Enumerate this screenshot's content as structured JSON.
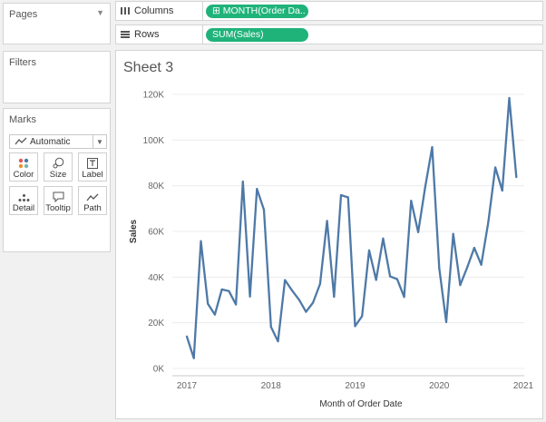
{
  "pages": {
    "title": "Pages"
  },
  "filters": {
    "title": "Filters"
  },
  "marks": {
    "title": "Marks",
    "mark_type": "Automatic",
    "buttons": [
      "Color",
      "Size",
      "Label",
      "Detail",
      "Tooltip",
      "Path"
    ]
  },
  "shelves": {
    "columns_label": "Columns",
    "columns_pill": "MONTH(Order Da..",
    "rows_label": "Rows",
    "rows_pill": "SUM(Sales)",
    "pill_color": "#1fb37a"
  },
  "sheet": {
    "title": "Sheet 3"
  },
  "chart_data": {
    "type": "line",
    "xlabel": "Month of Order Date",
    "ylabel": "Sales",
    "x_ticks": [
      "2017",
      "2018",
      "2019",
      "2020",
      "2021"
    ],
    "y_ticks": [
      "0K",
      "20K",
      "40K",
      "60K",
      "80K",
      "100K",
      "120K"
    ],
    "ylim": [
      0,
      120000
    ],
    "line_color": "#4e79a7",
    "grid": true,
    "series": [
      {
        "x": [
          "2017-01",
          "2017-02",
          "2017-03",
          "2017-04",
          "2017-05",
          "2017-06",
          "2017-07",
          "2017-08",
          "2017-09",
          "2017-10",
          "2017-11",
          "2017-12",
          "2018-01",
          "2018-02",
          "2018-03",
          "2018-04",
          "2018-05",
          "2018-06",
          "2018-07",
          "2018-08",
          "2018-09",
          "2018-10",
          "2018-11",
          "2018-12",
          "2019-01",
          "2019-02",
          "2019-03",
          "2019-04",
          "2019-05",
          "2019-06",
          "2019-07",
          "2019-08",
          "2019-09",
          "2019-10",
          "2019-11",
          "2019-12",
          "2020-01",
          "2020-02",
          "2020-03",
          "2020-04",
          "2020-05",
          "2020-06",
          "2020-07",
          "2020-08",
          "2020-09",
          "2020-10",
          "2020-11",
          "2020-12"
        ],
        "values": [
          14000,
          4500,
          55700,
          28300,
          23600,
          34600,
          33900,
          28000,
          81800,
          31500,
          78600,
          69500,
          18200,
          11900,
          38700,
          34200,
          30100,
          24800,
          28800,
          37000,
          64600,
          31400,
          75900,
          74900,
          18500,
          22900,
          51700,
          38800,
          56900,
          40300,
          39100,
          31300,
          73400,
          59700,
          79400,
          96900,
          43900,
          20300,
          58900,
          36500,
          44300,
          52800,
          45400,
          64100,
          88000,
          77900,
          118400,
          83800
        ]
      }
    ]
  }
}
